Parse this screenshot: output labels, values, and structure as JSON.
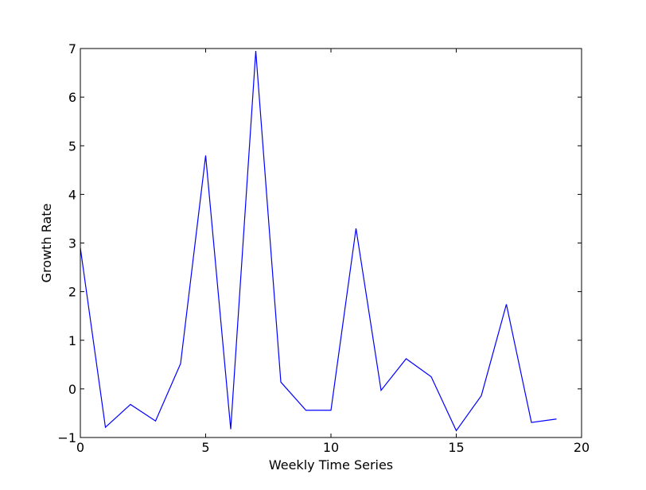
{
  "chart_data": {
    "type": "line",
    "title": "",
    "xlabel": "Weekly Time Series",
    "ylabel": "Growth Rate",
    "xlim": [
      0,
      20
    ],
    "ylim": [
      -1,
      7
    ],
    "x_ticks": [
      0,
      5,
      10,
      15,
      20
    ],
    "y_ticks": [
      -1,
      0,
      1,
      2,
      3,
      4,
      5,
      6,
      7
    ],
    "x_tick_labels": [
      "0",
      "5",
      "10",
      "15",
      "20"
    ],
    "y_tick_labels": [
      "−1",
      "0",
      "1",
      "2",
      "3",
      "4",
      "5",
      "6",
      "7"
    ],
    "grid": false,
    "legend": "none",
    "series": [
      {
        "color": "#0000ff",
        "x": [
          0,
          1,
          2,
          3,
          4,
          5,
          6,
          7,
          8,
          9,
          10,
          11,
          12,
          13,
          14,
          15,
          16,
          17,
          18,
          19
        ],
        "y": [
          2.9,
          -0.79,
          -0.32,
          -0.66,
          0.52,
          4.8,
          -0.83,
          6.95,
          0.14,
          -0.44,
          -0.44,
          3.3,
          -0.03,
          0.62,
          0.25,
          -0.86,
          -0.14,
          1.74,
          -0.69,
          -0.62
        ]
      }
    ]
  }
}
